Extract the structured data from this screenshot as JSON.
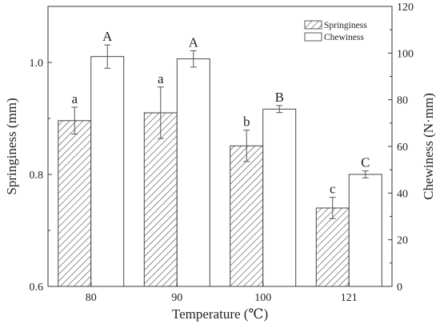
{
  "chart_data": {
    "type": "bar",
    "categories": [
      "80",
      "90",
      "100",
      "121"
    ],
    "xlabel": "Temperature (℃)",
    "ylabel_left": "Springiness (mm)",
    "ylabel_right": "Chewiness (N·mm)",
    "ylim_left": [
      0.6,
      1.1
    ],
    "yticks_left": [
      "0.6",
      "0.8",
      "1.0"
    ],
    "ylim_right": [
      0,
      120
    ],
    "yticks_right": [
      "0",
      "20",
      "40",
      "60",
      "80",
      "100",
      "120"
    ],
    "legend_position": "top-right",
    "grid": false,
    "series": [
      {
        "name": "Springiness",
        "axis": "left",
        "pattern": "hatched",
        "values": [
          0.896,
          0.91,
          0.851,
          0.74
        ],
        "errors": [
          0.024,
          0.046,
          0.028,
          0.019
        ],
        "significance": [
          "a",
          "a",
          "b",
          "c"
        ]
      },
      {
        "name": "Chewiness",
        "axis": "right",
        "pattern": "open",
        "values": [
          98.5,
          97.5,
          76.0,
          48.0
        ],
        "errors": [
          5.0,
          3.5,
          1.5,
          1.5
        ],
        "significance": [
          "A",
          "A",
          "B",
          "C"
        ]
      }
    ]
  }
}
